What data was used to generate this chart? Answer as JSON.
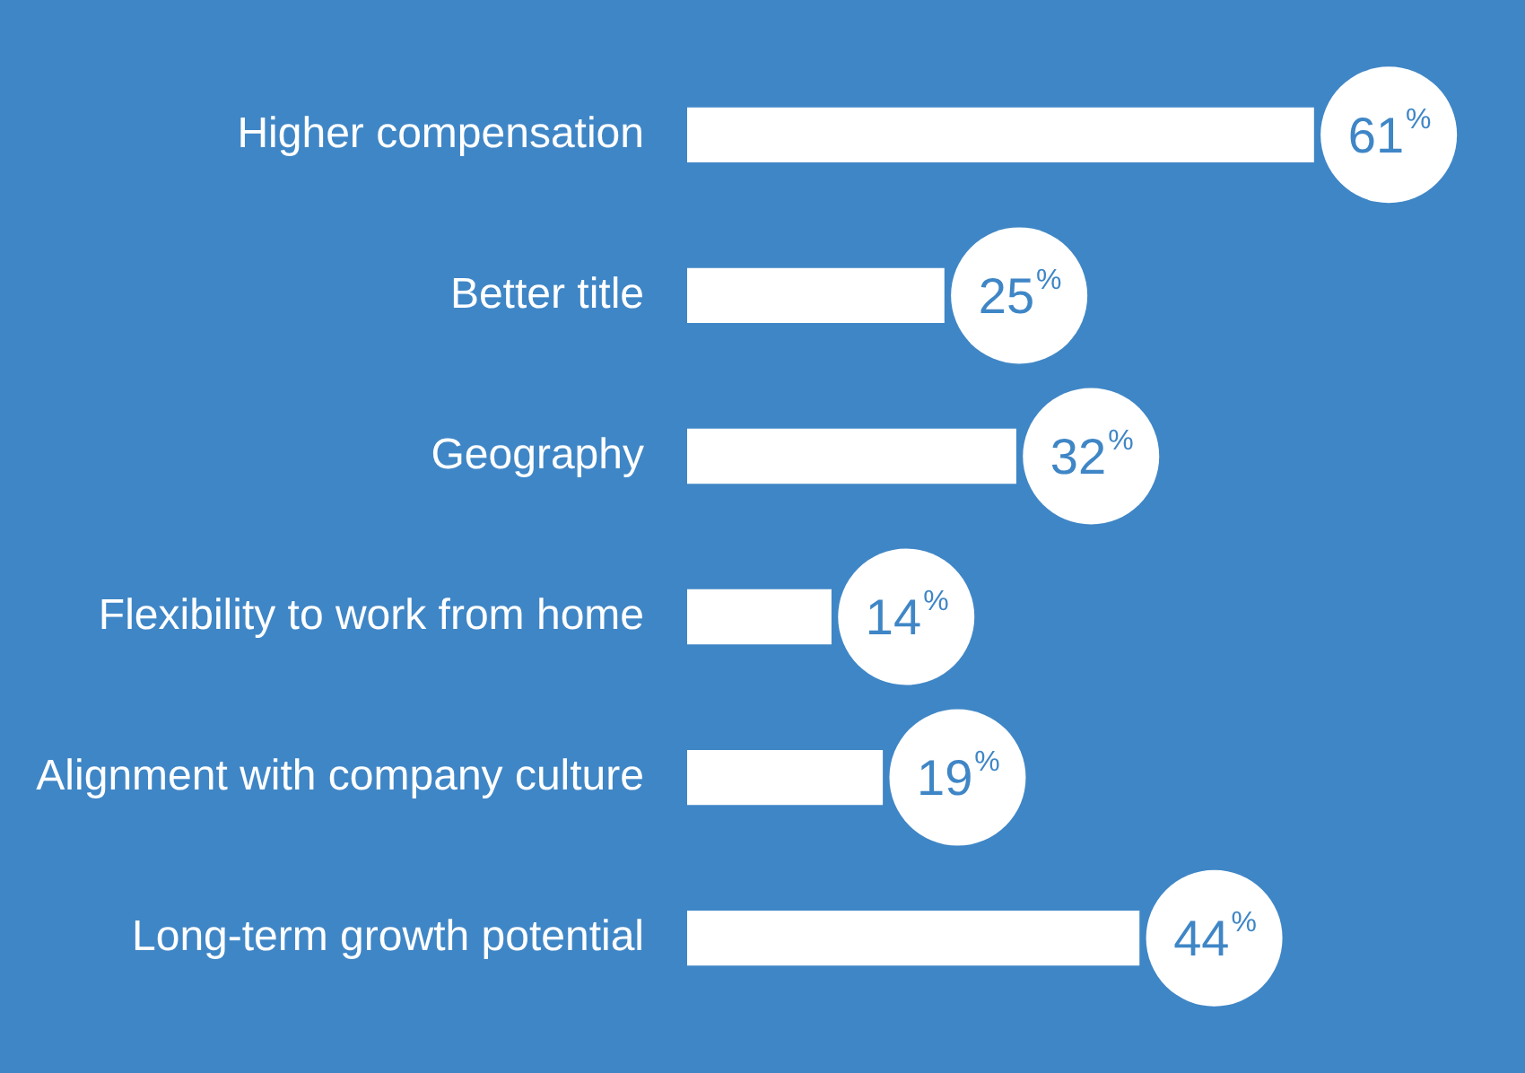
{
  "chart_data": {
    "type": "bar",
    "orientation": "horizontal",
    "categories": [
      "Higher compensation",
      "Better title",
      "Geography",
      "Flexibility to work from home",
      "Alignment with company culture",
      "Long-term growth potential"
    ],
    "values": [
      61,
      25,
      32,
      14,
      19,
      44
    ],
    "value_labels": [
      "61$^{%}$",
      "25$^{%}$",
      "32$^{%}$",
      "14$^{%}$",
      "19$^{%}$",
      "44$^{%}$"
    ],
    "color": "#ffffff",
    "grid": false,
    "legend": false
  }
}
